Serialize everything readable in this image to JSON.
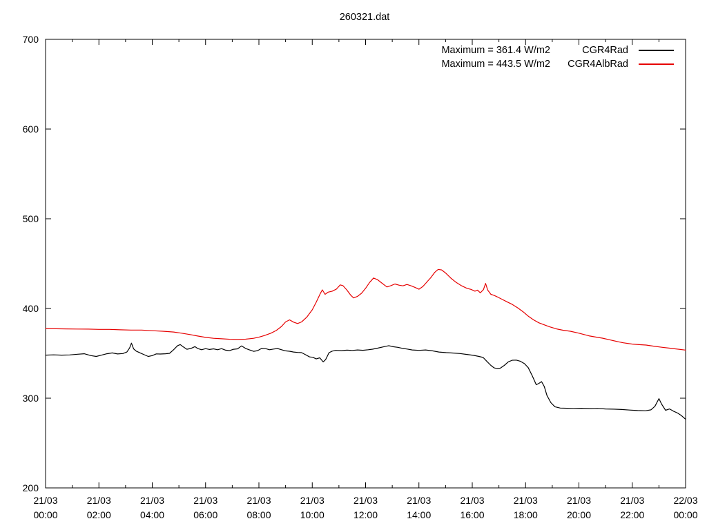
{
  "page": {
    "background": "#ffffff"
  },
  "chart_data": {
    "type": "line",
    "title": "260321.dat",
    "grid": false,
    "plot_background": "#ffffff",
    "axis_color": "#000000",
    "x_axis": {
      "kind": "time",
      "start_hour": 0,
      "end_hour": 24,
      "major_step_hours": 2,
      "minor_step_hours": 1,
      "ticks": [
        {
          "hour": 0,
          "line1": "21/03",
          "line2": "00:00"
        },
        {
          "hour": 2,
          "line1": "21/03",
          "line2": "02:00"
        },
        {
          "hour": 4,
          "line1": "21/03",
          "line2": "04:00"
        },
        {
          "hour": 6,
          "line1": "21/03",
          "line2": "06:00"
        },
        {
          "hour": 8,
          "line1": "21/03",
          "line2": "08:00"
        },
        {
          "hour": 10,
          "line1": "21/03",
          "line2": "10:00"
        },
        {
          "hour": 12,
          "line1": "21/03",
          "line2": "12:00"
        },
        {
          "hour": 14,
          "line1": "21/03",
          "line2": "14:00"
        },
        {
          "hour": 16,
          "line1": "21/03",
          "line2": "16:00"
        },
        {
          "hour": 18,
          "line1": "21/03",
          "line2": "18:00"
        },
        {
          "hour": 20,
          "line1": "21/03",
          "line2": "20:00"
        },
        {
          "hour": 22,
          "line1": "21/03",
          "line2": "22:00"
        },
        {
          "hour": 24,
          "line1": "22/03",
          "line2": "00:00"
        }
      ]
    },
    "y_axis": {
      "min": 200,
      "max": 700,
      "major_step": 100,
      "tick_values": [
        200,
        300,
        400,
        500,
        600,
        700
      ],
      "unit": "W/m2"
    },
    "legend": {
      "position": "top-right-inside",
      "entries": [
        {
          "label": "CGR4Rad",
          "annotation": "Maximum = 361.4 W/m2",
          "color": "#000000",
          "maximum_wm2": 361.4
        },
        {
          "label": "CGR4AlbRad",
          "annotation": "Maximum = 443.5 W/m2",
          "color": "#e60000",
          "maximum_wm2": 443.5
        }
      ]
    },
    "series": [
      {
        "name": "CGR4Rad",
        "color": "#000000",
        "maximum_wm2": 361.4,
        "points": [
          [
            0,
            348
          ],
          [
            0.3,
            348.3
          ],
          [
            0.6,
            348
          ],
          [
            0.9,
            348.2
          ],
          [
            1.2,
            349
          ],
          [
            1.45,
            349.5
          ],
          [
            1.7,
            347.5
          ],
          [
            1.9,
            346.5
          ],
          [
            2.1,
            348
          ],
          [
            2.3,
            349.5
          ],
          [
            2.5,
            350.5
          ],
          [
            2.7,
            349.3
          ],
          [
            2.9,
            349.8
          ],
          [
            3.05,
            351.5
          ],
          [
            3.15,
            356
          ],
          [
            3.22,
            361.4
          ],
          [
            3.3,
            355
          ],
          [
            3.4,
            352.5
          ],
          [
            3.55,
            350.5
          ],
          [
            3.7,
            348.5
          ],
          [
            3.85,
            346.5
          ],
          [
            4,
            347.5
          ],
          [
            4.15,
            349.4
          ],
          [
            4.3,
            349.2
          ],
          [
            4.5,
            349.5
          ],
          [
            4.65,
            350
          ],
          [
            4.8,
            354
          ],
          [
            4.95,
            358.5
          ],
          [
            5.05,
            359.8
          ],
          [
            5.15,
            357.5
          ],
          [
            5.3,
            354.5
          ],
          [
            5.45,
            355.5
          ],
          [
            5.6,
            357.5
          ],
          [
            5.7,
            355.5
          ],
          [
            5.85,
            354
          ],
          [
            6,
            355.2
          ],
          [
            6.15,
            354.3
          ],
          [
            6.3,
            355
          ],
          [
            6.45,
            354
          ],
          [
            6.6,
            355.2
          ],
          [
            6.75,
            353.5
          ],
          [
            6.9,
            353
          ],
          [
            7.05,
            354.5
          ],
          [
            7.2,
            355
          ],
          [
            7.35,
            358.3
          ],
          [
            7.5,
            355.5
          ],
          [
            7.65,
            353.8
          ],
          [
            7.8,
            352.2
          ],
          [
            7.95,
            353
          ],
          [
            8.1,
            355.5
          ],
          [
            8.25,
            355.2
          ],
          [
            8.4,
            354
          ],
          [
            8.55,
            354.8
          ],
          [
            8.7,
            355.4
          ],
          [
            8.85,
            354
          ],
          [
            9,
            352.8
          ],
          [
            9.15,
            352.3
          ],
          [
            9.3,
            351.5
          ],
          [
            9.45,
            351
          ],
          [
            9.6,
            350.8
          ],
          [
            9.75,
            348.5
          ],
          [
            9.9,
            346
          ],
          [
            10.02,
            345.6
          ],
          [
            10.15,
            343.8
          ],
          [
            10.28,
            345
          ],
          [
            10.41,
            340.5
          ],
          [
            10.5,
            343
          ],
          [
            10.63,
            350.8
          ],
          [
            10.75,
            352.5
          ],
          [
            10.88,
            353.3
          ],
          [
            11.1,
            353
          ],
          [
            11.3,
            353.5
          ],
          [
            11.5,
            353.2
          ],
          [
            11.7,
            353.8
          ],
          [
            11.9,
            353.4
          ],
          [
            12.1,
            354
          ],
          [
            12.26,
            354.6
          ],
          [
            12.45,
            355.8
          ],
          [
            12.7,
            357.5
          ],
          [
            12.87,
            358.5
          ],
          [
            13.05,
            357.3
          ],
          [
            13.21,
            356.7
          ],
          [
            13.4,
            355.5
          ],
          [
            13.56,
            354.8
          ],
          [
            13.75,
            353.8
          ],
          [
            14,
            353.3
          ],
          [
            14.25,
            353.8
          ],
          [
            14.51,
            352.8
          ],
          [
            14.75,
            351.5
          ],
          [
            15.03,
            350.8
          ],
          [
            15.3,
            350.3
          ],
          [
            15.54,
            349.8
          ],
          [
            15.8,
            348.8
          ],
          [
            16.06,
            347.7
          ],
          [
            16.25,
            346.5
          ],
          [
            16.41,
            345.4
          ],
          [
            16.55,
            341
          ],
          [
            16.7,
            336.5
          ],
          [
            16.82,
            333.8
          ],
          [
            16.93,
            333
          ],
          [
            17.05,
            333.5
          ],
          [
            17.2,
            336.5
          ],
          [
            17.35,
            340.5
          ],
          [
            17.5,
            342.3
          ],
          [
            17.65,
            342.5
          ],
          [
            17.8,
            341.2
          ],
          [
            17.96,
            338.5
          ],
          [
            18.1,
            334
          ],
          [
            18.25,
            325
          ],
          [
            18.4,
            315
          ],
          [
            18.5,
            316.5
          ],
          [
            18.6,
            318.5
          ],
          [
            18.7,
            313
          ],
          [
            18.8,
            303
          ],
          [
            18.95,
            295
          ],
          [
            19.1,
            290.5
          ],
          [
            19.3,
            289
          ],
          [
            19.55,
            288.8
          ],
          [
            19.8,
            288.6
          ],
          [
            20.1,
            288.8
          ],
          [
            20.4,
            288.4
          ],
          [
            20.7,
            288.6
          ],
          [
            21,
            288
          ],
          [
            21.3,
            287.8
          ],
          [
            21.6,
            287.4
          ],
          [
            21.9,
            286.8
          ],
          [
            22.2,
            286.2
          ],
          [
            22.5,
            286
          ],
          [
            22.7,
            287
          ],
          [
            22.85,
            291
          ],
          [
            23,
            299.5
          ],
          [
            23.1,
            293.5
          ],
          [
            23.25,
            286.5
          ],
          [
            23.4,
            288
          ],
          [
            23.55,
            285.5
          ],
          [
            23.7,
            283.5
          ],
          [
            23.85,
            280.5
          ],
          [
            24,
            276.5
          ]
        ]
      },
      {
        "name": "CGR4AlbRad",
        "color": "#e60000",
        "maximum_wm2": 443.5,
        "points": [
          [
            0,
            377.6
          ],
          [
            0.4,
            377.4
          ],
          [
            0.8,
            377.2
          ],
          [
            1.2,
            377.1
          ],
          [
            1.6,
            377
          ],
          [
            2,
            376.7
          ],
          [
            2.4,
            376.7
          ],
          [
            2.8,
            376.2
          ],
          [
            3.2,
            375.9
          ],
          [
            3.6,
            375.9
          ],
          [
            4,
            375.2
          ],
          [
            4.4,
            374.6
          ],
          [
            4.8,
            373.8
          ],
          [
            5.1,
            372.5
          ],
          [
            5.4,
            371
          ],
          [
            5.7,
            369.3
          ],
          [
            6,
            367.8
          ],
          [
            6.3,
            366.8
          ],
          [
            6.6,
            366.2
          ],
          [
            6.9,
            365.7
          ],
          [
            7.2,
            365.5
          ],
          [
            7.5,
            365.8
          ],
          [
            7.8,
            366.8
          ],
          [
            8,
            368
          ],
          [
            8.2,
            369.8
          ],
          [
            8.45,
            372.5
          ],
          [
            8.65,
            375.5
          ],
          [
            8.85,
            380
          ],
          [
            9,
            385
          ],
          [
            9.15,
            387.3
          ],
          [
            9.3,
            384.8
          ],
          [
            9.45,
            383.2
          ],
          [
            9.6,
            385
          ],
          [
            9.8,
            390.5
          ],
          [
            10,
            398.5
          ],
          [
            10.15,
            407
          ],
          [
            10.3,
            416.5
          ],
          [
            10.38,
            420.8
          ],
          [
            10.48,
            415.8
          ],
          [
            10.6,
            418.2
          ],
          [
            10.75,
            419.3
          ],
          [
            10.9,
            421.5
          ],
          [
            11.05,
            426.3
          ],
          [
            11.15,
            425.5
          ],
          [
            11.3,
            420.5
          ],
          [
            11.45,
            414.5
          ],
          [
            11.55,
            411.8
          ],
          [
            11.7,
            413.5
          ],
          [
            11.85,
            417
          ],
          [
            12,
            422.5
          ],
          [
            12.15,
            429
          ],
          [
            12.3,
            434
          ],
          [
            12.45,
            432
          ],
          [
            12.6,
            428.5
          ],
          [
            12.8,
            424
          ],
          [
            12.95,
            425.5
          ],
          [
            13.1,
            427.3
          ],
          [
            13.25,
            426
          ],
          [
            13.4,
            425.2
          ],
          [
            13.55,
            426.8
          ],
          [
            13.7,
            425.3
          ],
          [
            13.85,
            423.5
          ],
          [
            14,
            421.5
          ],
          [
            14.15,
            424.5
          ],
          [
            14.3,
            429.5
          ],
          [
            14.45,
            434.5
          ],
          [
            14.6,
            440.5
          ],
          [
            14.72,
            443.5
          ],
          [
            14.85,
            443
          ],
          [
            15,
            439.5
          ],
          [
            15.2,
            433.8
          ],
          [
            15.4,
            429
          ],
          [
            15.6,
            425.3
          ],
          [
            15.8,
            422.5
          ],
          [
            15.95,
            421.3
          ],
          [
            16.1,
            419.3
          ],
          [
            16.2,
            420.5
          ],
          [
            16.3,
            417.5
          ],
          [
            16.42,
            421
          ],
          [
            16.5,
            427.9
          ],
          [
            16.58,
            420.5
          ],
          [
            16.7,
            415.8
          ],
          [
            16.82,
            414.5
          ],
          [
            16.95,
            412.8
          ],
          [
            17.1,
            410.5
          ],
          [
            17.3,
            407.5
          ],
          [
            17.5,
            404.5
          ],
          [
            17.7,
            400.8
          ],
          [
            17.9,
            396.5
          ],
          [
            18.1,
            391.5
          ],
          [
            18.3,
            387.3
          ],
          [
            18.5,
            384
          ],
          [
            18.7,
            381.8
          ],
          [
            18.9,
            379.5
          ],
          [
            19.16,
            377.2
          ],
          [
            19.4,
            375.8
          ],
          [
            19.68,
            374.6
          ],
          [
            20,
            372.5
          ],
          [
            20.37,
            369.5
          ],
          [
            20.7,
            367.8
          ],
          [
            20.88,
            366.9
          ],
          [
            21.2,
            364.8
          ],
          [
            21.5,
            362.8
          ],
          [
            21.66,
            361.8
          ],
          [
            22,
            360.3
          ],
          [
            22.3,
            359.6
          ],
          [
            22.52,
            359.2
          ],
          [
            22.8,
            358
          ],
          [
            23.13,
            356.7
          ],
          [
            23.4,
            355.8
          ],
          [
            23.64,
            354.9
          ],
          [
            24,
            353.6
          ]
        ]
      }
    ]
  }
}
